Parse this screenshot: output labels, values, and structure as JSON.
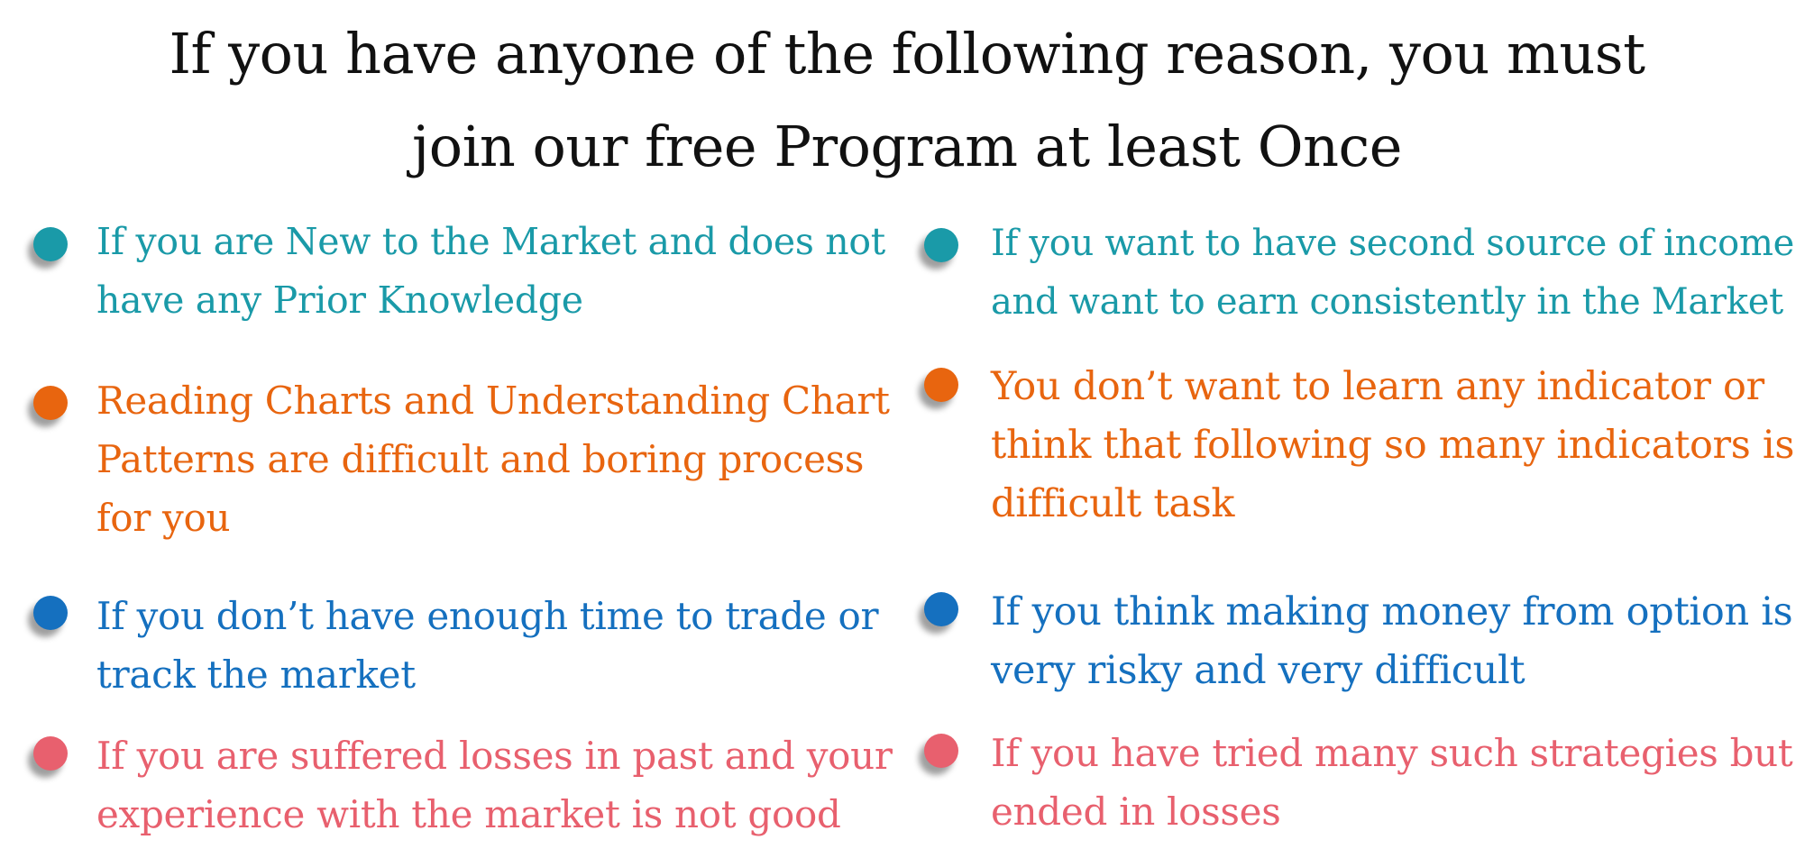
{
  "title": {
    "line1": "If you have anyone of the following reason, you must",
    "line2": "join our free Program at least Once"
  },
  "colors": {
    "teal": "#1a9aa8",
    "orange": "#e8650f",
    "blue": "#1570bf",
    "pink": "#e8606e",
    "title": "#111111"
  },
  "reasons": {
    "left": [
      {
        "line1": "If you are New to the Market and does not",
        "line2": "have any Prior Knowledge",
        "color": "teal",
        "icon": "teal-bullet-icon"
      },
      {
        "line1": "Reading Charts and Understanding Chart",
        "line2": "Patterns are difficult and boring process",
        "line3": "for you",
        "color": "orange",
        "icon": "orange-bullet-icon"
      },
      {
        "line1": "If you don’t have enough time to trade or",
        "line2": "track the market",
        "color": "blue",
        "icon": "blue-bullet-icon"
      },
      {
        "line1": "If you are suffered losses in past and your",
        "line2": "experience with the market is not good",
        "color": "pink",
        "icon": "pink-bullet-icon"
      }
    ],
    "right": [
      {
        "line1": "If you want to have second source of income",
        "line2": "and want to earn consistently in the Market",
        "color": "teal",
        "icon": "teal-bullet-icon"
      },
      {
        "line1": "You don’t want to learn any indicator or",
        "line2": "think that following so many indicators is",
        "line3": "difficult task",
        "color": "orange",
        "icon": "orange-bullet-icon"
      },
      {
        "line1": "If you think making money from option is",
        "line2": "very risky and very difficult",
        "color": "blue",
        "icon": "blue-bullet-icon"
      },
      {
        "line1": "If you have tried many such strategies but",
        "line2": "ended in losses",
        "color": "pink",
        "icon": "pink-bullet-icon"
      }
    ]
  }
}
